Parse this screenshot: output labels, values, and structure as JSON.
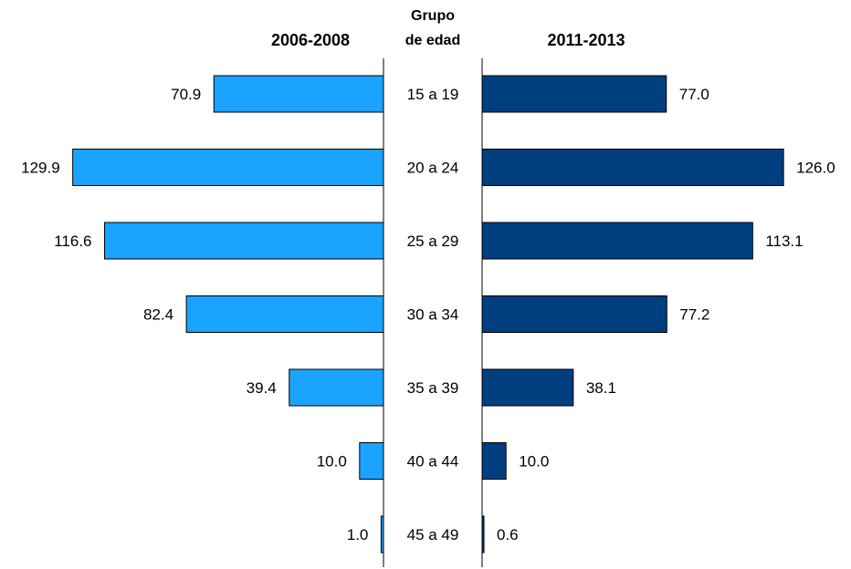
{
  "chart_data": {
    "type": "bar",
    "orientation": "horizontal-back-to-back",
    "center_title_line1": "Grupo",
    "center_title_line2": "de edad",
    "categories": [
      "15 a 19",
      "20 a 24",
      "25 a 29",
      "30 a 34",
      "35 a 39",
      "40 a 44",
      "45 a 49"
    ],
    "series": [
      {
        "name": "2006-2008",
        "side": "left",
        "color": "#1aa3ff",
        "values": [
          70.9,
          129.9,
          116.6,
          82.4,
          39.4,
          10.0,
          1.0
        ],
        "labels": [
          "70.9",
          "129.9",
          "116.6",
          "82.4",
          "39.4",
          "10.0",
          "1.0"
        ]
      },
      {
        "name": "2011-2013",
        "side": "right",
        "color": "#003f7f",
        "values": [
          77.0,
          126.0,
          113.1,
          77.2,
          38.1,
          10.0,
          0.6
        ],
        "labels": [
          "77.0",
          "126.0",
          "113.1",
          "77.2",
          "38.1",
          "10.0",
          "0.6"
        ]
      }
    ],
    "grid": false,
    "legend": "none"
  }
}
